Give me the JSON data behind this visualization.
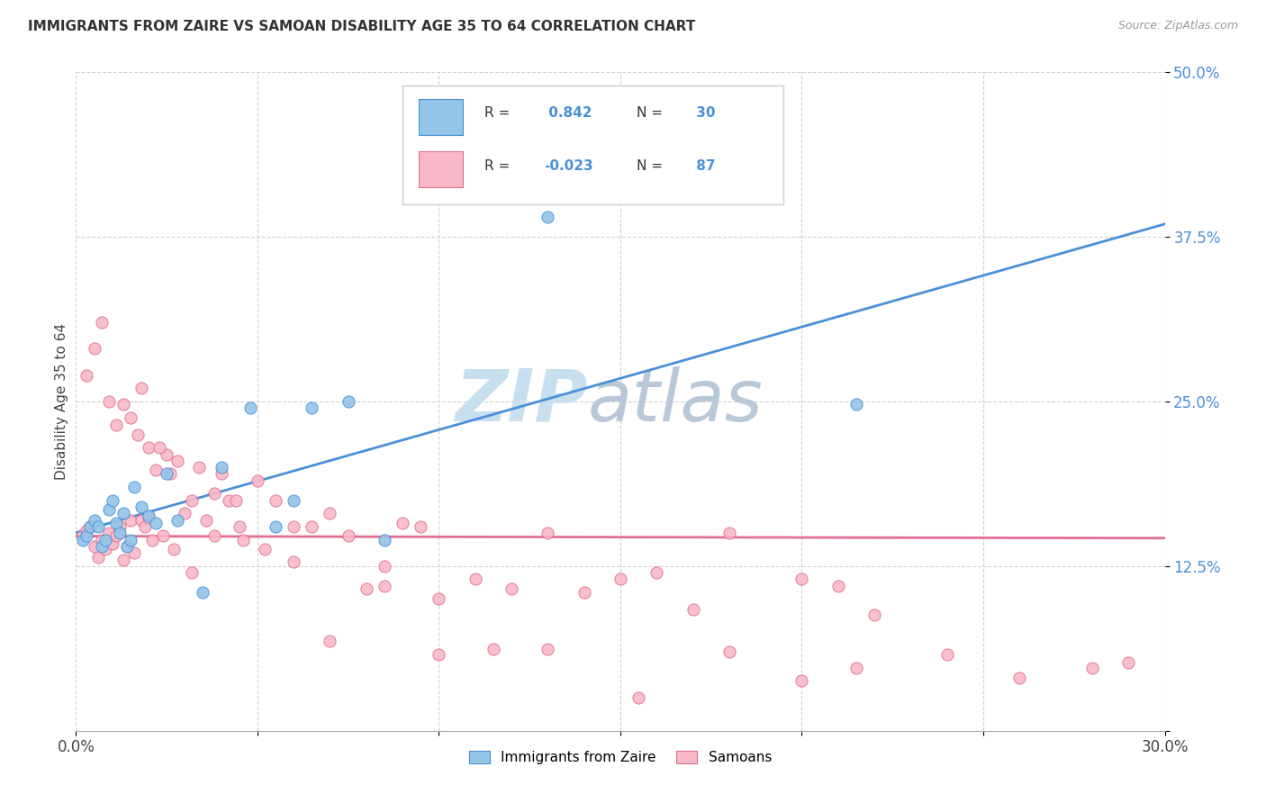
{
  "title": "IMMIGRANTS FROM ZAIRE VS SAMOAN DISABILITY AGE 35 TO 64 CORRELATION CHART",
  "source": "Source: ZipAtlas.com",
  "ylabel": "Disability Age 35 to 64",
  "xlim": [
    0.0,
    0.3
  ],
  "ylim": [
    0.0,
    0.5
  ],
  "yticks": [
    0.0,
    0.125,
    0.25,
    0.375,
    0.5
  ],
  "yticklabels": [
    "",
    "12.5%",
    "25.0%",
    "37.5%",
    "50.0%"
  ],
  "blue_R": 0.842,
  "blue_N": 30,
  "pink_R": -0.023,
  "pink_N": 87,
  "blue_scatter_color": "#93c5e8",
  "blue_edge_color": "#4a90d9",
  "pink_scatter_color": "#f9b8c8",
  "pink_edge_color": "#e07090",
  "blue_line_color": "#4a90d9",
  "pink_line_color": "#e07090",
  "watermark_color": "#c8dff0",
  "blue_points_x": [
    0.002,
    0.003,
    0.004,
    0.005,
    0.006,
    0.007,
    0.008,
    0.009,
    0.01,
    0.011,
    0.012,
    0.013,
    0.014,
    0.015,
    0.016,
    0.018,
    0.02,
    0.022,
    0.025,
    0.028,
    0.035,
    0.04,
    0.048,
    0.055,
    0.06,
    0.065,
    0.075,
    0.085,
    0.13,
    0.215
  ],
  "blue_points_y": [
    0.145,
    0.148,
    0.155,
    0.16,
    0.155,
    0.14,
    0.145,
    0.168,
    0.175,
    0.158,
    0.15,
    0.165,
    0.14,
    0.145,
    0.185,
    0.17,
    0.163,
    0.158,
    0.195,
    0.16,
    0.105,
    0.2,
    0.245,
    0.155,
    0.175,
    0.245,
    0.25,
    0.145,
    0.39,
    0.248
  ],
  "pink_points_x": [
    0.002,
    0.003,
    0.004,
    0.005,
    0.006,
    0.007,
    0.008,
    0.009,
    0.01,
    0.011,
    0.012,
    0.013,
    0.014,
    0.015,
    0.016,
    0.017,
    0.018,
    0.019,
    0.02,
    0.021,
    0.022,
    0.024,
    0.025,
    0.026,
    0.028,
    0.03,
    0.032,
    0.034,
    0.036,
    0.038,
    0.04,
    0.042,
    0.044,
    0.046,
    0.05,
    0.055,
    0.06,
    0.065,
    0.07,
    0.075,
    0.08,
    0.085,
    0.09,
    0.095,
    0.1,
    0.11,
    0.12,
    0.13,
    0.14,
    0.15,
    0.16,
    0.17,
    0.18,
    0.2,
    0.21,
    0.22,
    0.24,
    0.28,
    0.003,
    0.005,
    0.007,
    0.009,
    0.011,
    0.013,
    0.015,
    0.018,
    0.02,
    0.023,
    0.027,
    0.032,
    0.038,
    0.045,
    0.052,
    0.06,
    0.07,
    0.085,
    0.1,
    0.115,
    0.13,
    0.155,
    0.18,
    0.2,
    0.215,
    0.26,
    0.29
  ],
  "pink_points_y": [
    0.148,
    0.152,
    0.155,
    0.14,
    0.132,
    0.145,
    0.138,
    0.15,
    0.142,
    0.148,
    0.155,
    0.13,
    0.14,
    0.16,
    0.135,
    0.225,
    0.16,
    0.155,
    0.162,
    0.145,
    0.198,
    0.148,
    0.21,
    0.195,
    0.205,
    0.165,
    0.175,
    0.2,
    0.16,
    0.18,
    0.195,
    0.175,
    0.175,
    0.145,
    0.19,
    0.175,
    0.155,
    0.155,
    0.165,
    0.148,
    0.108,
    0.11,
    0.158,
    0.155,
    0.1,
    0.115,
    0.108,
    0.15,
    0.105,
    0.115,
    0.12,
    0.092,
    0.15,
    0.115,
    0.11,
    0.088,
    0.058,
    0.048,
    0.27,
    0.29,
    0.31,
    0.25,
    0.232,
    0.248,
    0.238,
    0.26,
    0.215,
    0.215,
    0.138,
    0.12,
    0.148,
    0.155,
    0.138,
    0.128,
    0.068,
    0.125,
    0.058,
    0.062,
    0.062,
    0.025,
    0.06,
    0.038,
    0.048,
    0.04,
    0.052
  ]
}
